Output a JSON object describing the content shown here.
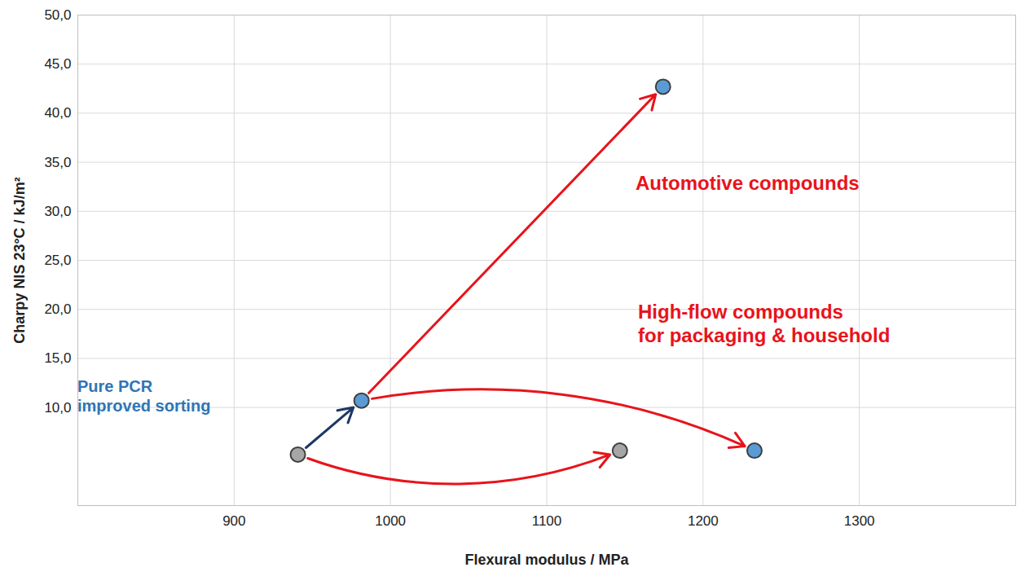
{
  "chart_data": {
    "type": "scatter",
    "x": [
      940.8,
      981.5,
      1146.8,
      1232.9,
      1174.4
    ],
    "values": [
      5.2,
      10.7,
      5.6,
      5.6,
      42.7
    ],
    "colors": [
      "#a6a6a6",
      "#5b9bd5",
      "#a6a6a6",
      "#5b9bd5",
      "#5b9bd5"
    ],
    "xlabel": "Flexural modulus / MPa",
    "ylabel": "Charpy NIS 23°C / kJ/m²",
    "xlim": [
      800,
      1400
    ],
    "xticks": [
      900,
      1000,
      1100,
      1200,
      1300
    ],
    "ylim": [
      0,
      50
    ],
    "yticks": [
      {
        "value": 10,
        "label": "10,0"
      },
      {
        "value": 15,
        "label": "15,0"
      },
      {
        "value": 20,
        "label": "20,0"
      },
      {
        "value": 25,
        "label": "25,0"
      },
      {
        "value": 30,
        "label": "30,0"
      },
      {
        "value": 35,
        "label": "35,0"
      },
      {
        "value": 40,
        "label": "40,0"
      },
      {
        "value": 45,
        "label": "45,0"
      },
      {
        "value": 50,
        "label": "50,0"
      }
    ],
    "grid": true,
    "annotations": [
      "Pure PCR\nimproved sorting",
      "Automotive compounds",
      "High-flow compounds\nfor packaging & household"
    ]
  }
}
